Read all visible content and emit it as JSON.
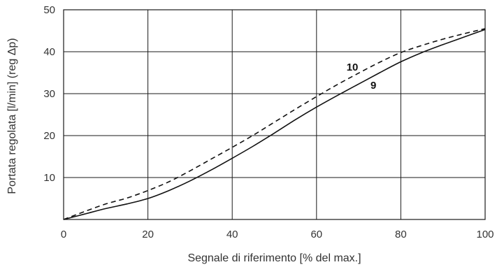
{
  "chart_data": {
    "type": "line",
    "title": "",
    "xlabel": "Segnale di riferimento [% del max.]",
    "ylabel": "Portata regolata [l/min] (reg Δp)",
    "xlim": [
      0,
      100
    ],
    "ylim": [
      0,
      50
    ],
    "x_ticks": [
      "0",
      "20",
      "40",
      "60",
      "80",
      "100"
    ],
    "y_ticks": [
      "10",
      "20",
      "30",
      "40",
      "50"
    ],
    "x_tick_values": [
      0,
      20,
      40,
      60,
      80,
      100
    ],
    "y_tick_values": [
      10,
      20,
      30,
      40,
      50
    ],
    "grid": true,
    "legend": "none",
    "series": [
      {
        "name": "9",
        "style": "solid",
        "color": "#111111",
        "x": [
          0,
          5,
          10,
          15,
          20,
          25,
          30,
          35,
          40,
          45,
          50,
          55,
          60,
          65,
          70,
          75,
          80,
          85,
          90,
          95,
          100
        ],
        "y": [
          0,
          1.3,
          2.6,
          3.7,
          5.0,
          6.9,
          9.2,
          11.8,
          14.6,
          17.5,
          20.6,
          23.8,
          26.8,
          29.6,
          32.3,
          35.0,
          37.6,
          39.8,
          41.7,
          43.5,
          45.3
        ]
      },
      {
        "name": "10",
        "style": "dashed",
        "color": "#111111",
        "x": [
          0,
          5,
          10,
          15,
          20,
          25,
          30,
          35,
          40,
          45,
          50,
          55,
          60,
          65,
          70,
          75,
          80,
          85,
          90,
          95,
          100
        ],
        "y": [
          0,
          1.9,
          3.7,
          5.1,
          6.9,
          9.0,
          11.6,
          14.4,
          17.2,
          20.1,
          23.2,
          26.3,
          29.3,
          32.2,
          34.9,
          37.5,
          39.8,
          41.5,
          43.0,
          44.3,
          45.5
        ]
      }
    ],
    "annotations": [
      {
        "text": "10",
        "x": 68.5,
        "y": 35.5
      },
      {
        "text": "9",
        "x": 73.5,
        "y": 31.2
      }
    ]
  }
}
